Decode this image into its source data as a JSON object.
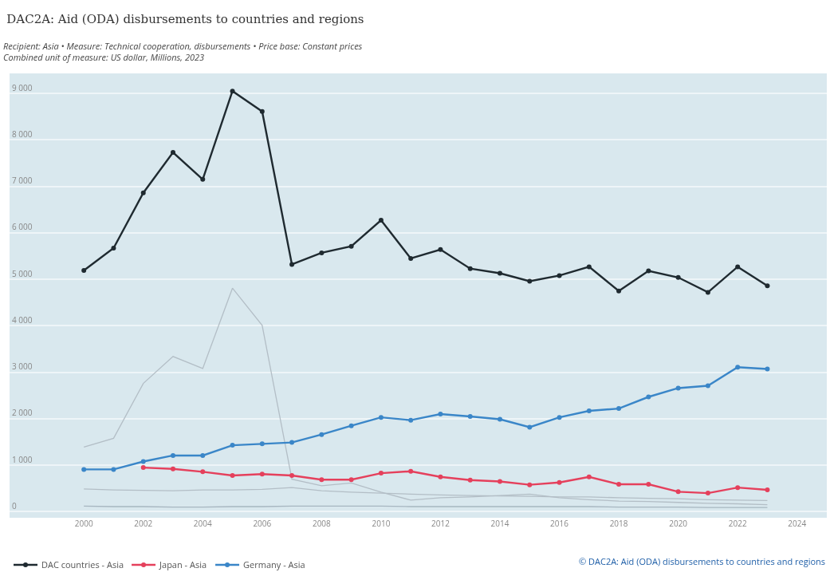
{
  "chart_data": {
    "type": "line",
    "title": "DAC2A: Aid (ODA) disbursements to countries and regions",
    "subtitle": "Recipient: Asia • Measure: Technical cooperation, disbursements • Price base: Constant prices\nCombined unit of measure: US dollar, Millions, 2023",
    "x": [
      2000,
      2001,
      2002,
      2003,
      2004,
      2005,
      2006,
      2007,
      2008,
      2009,
      2010,
      2011,
      2012,
      2013,
      2014,
      2015,
      2016,
      2017,
      2018,
      2019,
      2020,
      2021,
      2022,
      2023
    ],
    "series": [
      {
        "color": "#b3bec6",
        "marker": "none",
        "values": [
          1390,
          1580,
          2760,
          3340,
          3080,
          4810,
          4010,
          700,
          560,
          620,
          420,
          250,
          300,
          320,
          350,
          380,
          300,
          260,
          230,
          220,
          200,
          180,
          170,
          150
        ]
      },
      {
        "color": "#b3bec6",
        "marker": "none",
        "values": [
          490,
          470,
          460,
          450,
          470,
          470,
          480,
          520,
          450,
          420,
          400,
          380,
          360,
          350,
          340,
          330,
          320,
          320,
          300,
          290,
          280,
          260,
          250,
          240
        ]
      },
      {
        "color": "#a7b6c0",
        "marker": "none",
        "values": [
          120,
          110,
          110,
          100,
          100,
          110,
          110,
          120,
          120,
          120,
          120,
          110,
          110,
          110,
          110,
          110,
          110,
          110,
          100,
          100,
          100,
          90,
          90,
          90
        ]
      },
      {
        "name": "DAC countries - Asia",
        "color": "#1f2a30",
        "values": [
          5190,
          5670,
          6860,
          7730,
          7150,
          9050,
          8610,
          5320,
          5570,
          5710,
          6270,
          5450,
          5640,
          5230,
          5130,
          4960,
          5080,
          5270,
          4750,
          5180,
          5040,
          4720,
          5270,
          4860
        ]
      },
      {
        "name": "Japan - Asia",
        "color": "#e5405c",
        "values": [
          null,
          null,
          950,
          920,
          860,
          780,
          810,
          780,
          690,
          690,
          830,
          870,
          750,
          680,
          650,
          580,
          630,
          750,
          590,
          590,
          430,
          400,
          520,
          470
        ]
      },
      {
        "name": "Germany - Asia",
        "color": "#3a86c8",
        "values": [
          910,
          910,
          1080,
          1210,
          1210,
          1430,
          1460,
          1490,
          1660,
          1850,
          2030,
          1970,
          2100,
          2050,
          1990,
          1820,
          2030,
          2170,
          2220,
          2470,
          2660,
          2710,
          3110,
          3070
        ]
      }
    ],
    "xlim": [
      1997.5,
      2025
    ],
    "xticks": [
      2000,
      2002,
      2004,
      2006,
      2008,
      2010,
      2012,
      2014,
      2016,
      2018,
      2020,
      2022,
      2024
    ],
    "ylim": [
      -130,
      9430
    ],
    "yticks": [
      {
        "value": 0,
        "label": "0"
      },
      {
        "value": 1000,
        "label": "1 000"
      },
      {
        "value": 2000,
        "label": "2 000"
      },
      {
        "value": 3000,
        "label": "3 000"
      },
      {
        "value": 4000,
        "label": "4 000"
      },
      {
        "value": 5000,
        "label": "5 000"
      },
      {
        "value": 6000,
        "label": "6 000"
      },
      {
        "value": 7000,
        "label": "7 000"
      },
      {
        "value": 8000,
        "label": "8 000"
      },
      {
        "value": 9000,
        "label": "9 000"
      }
    ],
    "grid": "y",
    "legend": "bottom left",
    "marker": "circle",
    "line_style": "solid",
    "annotations": [
      "© DAC2A: Aid (ODA) disbursements to countries and regions"
    ]
  }
}
